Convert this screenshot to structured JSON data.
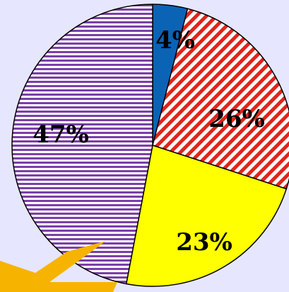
{
  "chart_data": {
    "type": "pie",
    "title": "",
    "slices": [
      {
        "label": "4%",
        "value": 4,
        "color": "#0b63b5",
        "fill": "solid"
      },
      {
        "label": "26%",
        "value": 26,
        "color": "#e0241b",
        "fill": "diagonal-stripes"
      },
      {
        "label": "23%",
        "value": 23,
        "color": "#ffff00",
        "fill": "solid"
      },
      {
        "label": "47%",
        "value": 47,
        "color": "#7b3fa8",
        "fill": "horizontal-stripes"
      }
    ],
    "start_angle_deg": 0,
    "direction": "clockwise",
    "legend": "none"
  },
  "callout": {
    "color": "#f6b400",
    "shape": "arrow"
  },
  "background_color": "#e6e6ff"
}
